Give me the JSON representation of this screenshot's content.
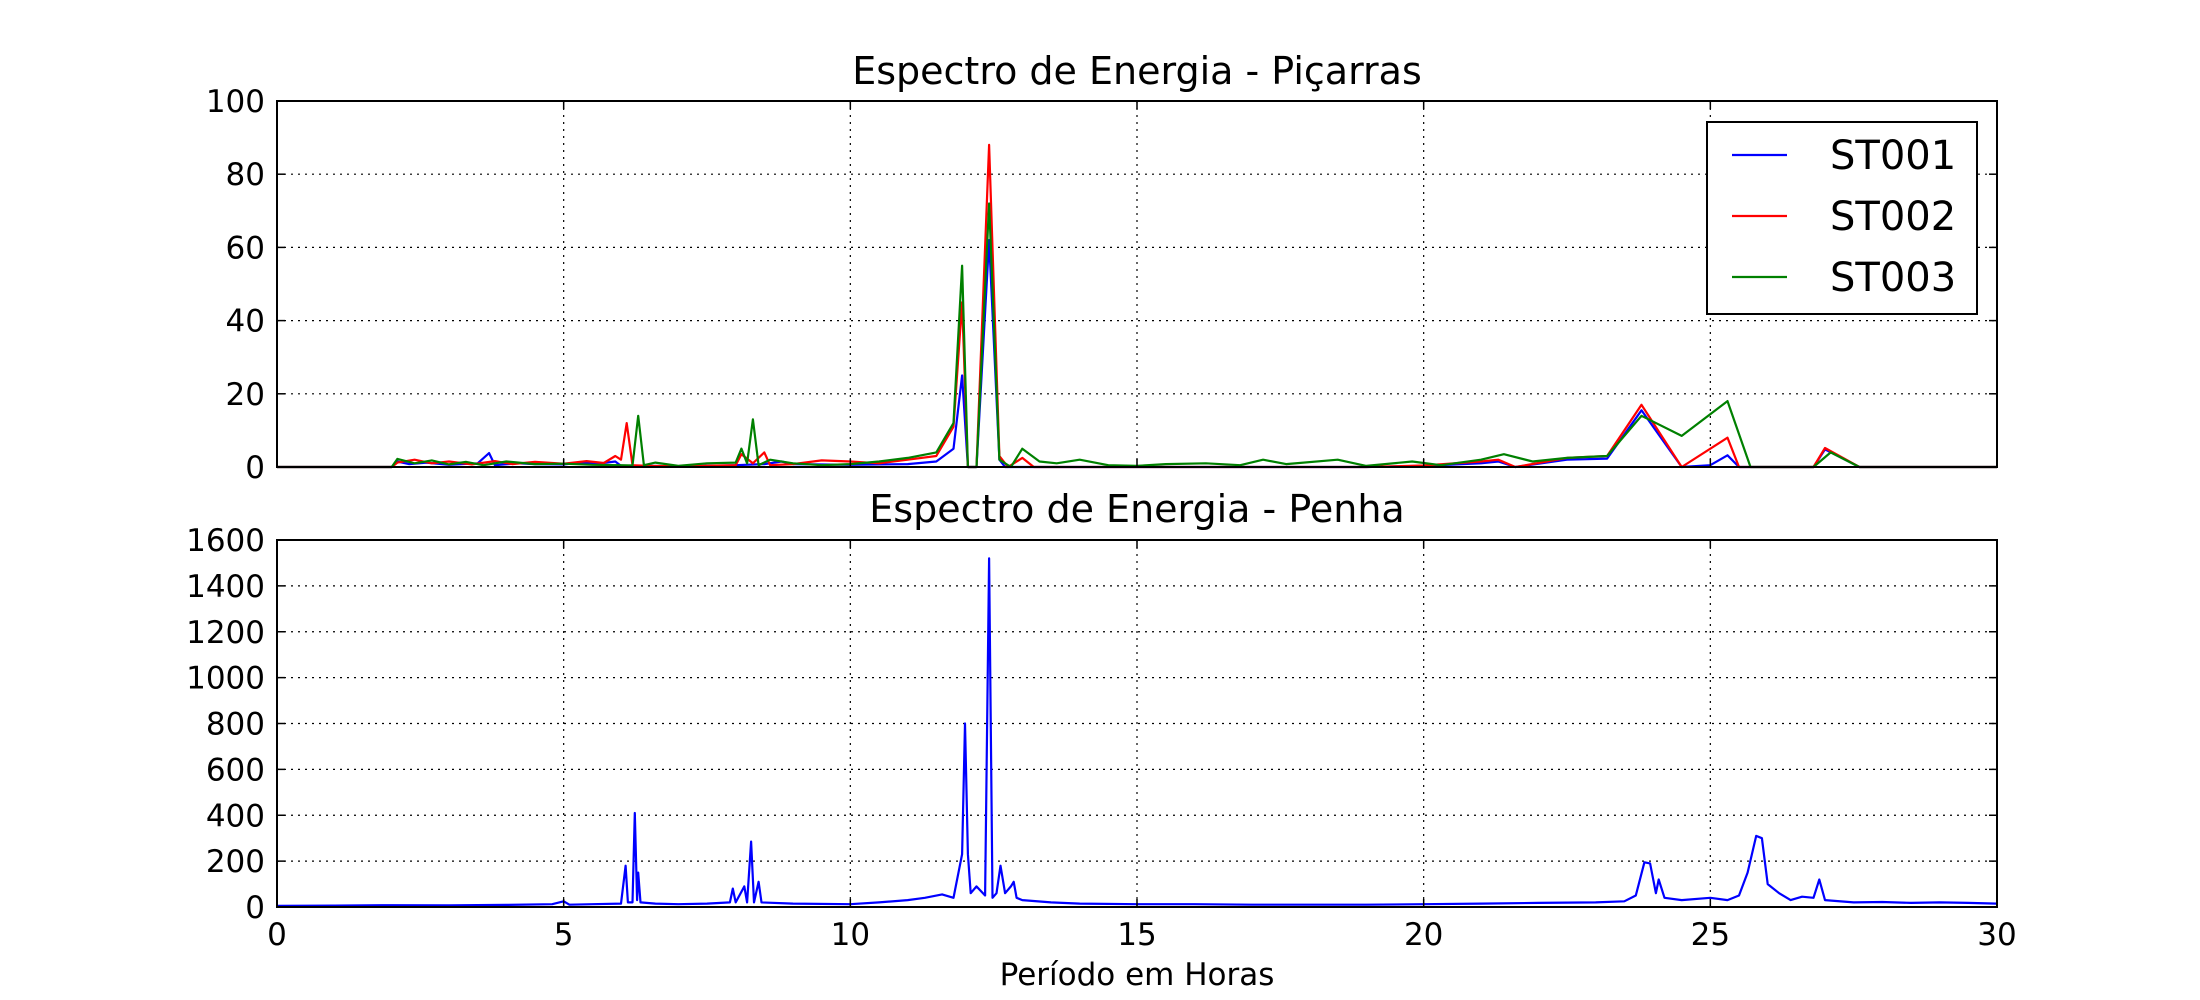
{
  "chart_data": [
    {
      "type": "line",
      "title": "Espectro de Energia - Piçarras",
      "xlabel": "",
      "ylabel": "",
      "xlim": [
        0,
        30
      ],
      "ylim": [
        0,
        100
      ],
      "xticks": [
        "0",
        "5",
        "10",
        "15",
        "20",
        "25",
        "30"
      ],
      "yticks": [
        "0",
        "20",
        "40",
        "60",
        "80",
        "100"
      ],
      "x_tick_labels_visible": false,
      "grid": true,
      "legend": "top-right",
      "series": [
        {
          "name": "ST001",
          "color": "#0000ff",
          "points": [
            [
              0,
              0
            ],
            [
              2,
              0
            ],
            [
              2.1,
              1.5
            ],
            [
              2.3,
              0.8
            ],
            [
              2.6,
              1.2
            ],
            [
              3,
              0.6
            ],
            [
              3.5,
              1
            ],
            [
              3.7,
              3.8
            ],
            [
              3.8,
              0.5
            ],
            [
              4.2,
              1
            ],
            [
              4.5,
              0.8
            ],
            [
              5,
              0.7
            ],
            [
              5.3,
              1.2
            ],
            [
              5.6,
              0.9
            ],
            [
              5.9,
              1.5
            ],
            [
              6,
              0.3
            ],
            [
              6.2,
              0.4
            ],
            [
              6.5,
              0.3
            ],
            [
              7,
              0.2
            ],
            [
              8,
              0.5
            ],
            [
              8.5,
              0.8
            ],
            [
              8.8,
              1.5
            ],
            [
              9,
              0.8
            ],
            [
              10,
              0.6
            ],
            [
              11,
              0.8
            ],
            [
              11.5,
              1.5
            ],
            [
              11.8,
              5
            ],
            [
              11.95,
              25
            ],
            [
              12.05,
              0
            ],
            [
              12.2,
              0
            ],
            [
              12.42,
              62
            ],
            [
              12.6,
              2
            ],
            [
              12.7,
              0
            ],
            [
              15,
              0
            ],
            [
              19,
              0
            ],
            [
              20,
              0.3
            ],
            [
              21,
              1
            ],
            [
              21.3,
              1.5
            ],
            [
              21.6,
              0
            ],
            [
              22.5,
              2
            ],
            [
              23.2,
              2.3
            ],
            [
              23.8,
              15.5
            ],
            [
              24.5,
              0
            ],
            [
              25,
              0.5
            ],
            [
              25.3,
              3.2
            ],
            [
              25.5,
              0
            ],
            [
              26.8,
              0
            ],
            [
              27,
              4.8
            ],
            [
              27.6,
              0
            ],
            [
              30,
              0
            ]
          ]
        },
        {
          "name": "ST002",
          "color": "#ff0000",
          "points": [
            [
              0,
              0
            ],
            [
              2,
              0
            ],
            [
              2.1,
              1.2
            ],
            [
              2.4,
              2
            ],
            [
              2.7,
              1
            ],
            [
              3,
              1.5
            ],
            [
              3.4,
              0.7
            ],
            [
              3.8,
              1.6
            ],
            [
              4.1,
              0.8
            ],
            [
              4.5,
              1.4
            ],
            [
              5,
              0.9
            ],
            [
              5.4,
              1.6
            ],
            [
              5.7,
              1.1
            ],
            [
              5.9,
              3
            ],
            [
              6,
              2
            ],
            [
              6.1,
              12
            ],
            [
              6.2,
              0.5
            ],
            [
              6.5,
              0.3
            ],
            [
              7,
              0.2
            ],
            [
              8,
              0.5
            ],
            [
              8.1,
              3.5
            ],
            [
              8.3,
              1
            ],
            [
              8.5,
              4
            ],
            [
              8.6,
              0.5
            ],
            [
              9,
              0.8
            ],
            [
              9.5,
              1.8
            ],
            [
              10,
              1.5
            ],
            [
              10.5,
              1
            ],
            [
              11,
              2
            ],
            [
              11.5,
              3
            ],
            [
              11.8,
              11
            ],
            [
              11.95,
              45
            ],
            [
              12.05,
              0
            ],
            [
              12.2,
              0
            ],
            [
              12.42,
              88
            ],
            [
              12.6,
              3
            ],
            [
              12.75,
              0
            ],
            [
              13,
              2.5
            ],
            [
              13.2,
              0
            ],
            [
              15,
              0
            ],
            [
              19,
              0
            ],
            [
              20,
              0.4
            ],
            [
              21,
              1.5
            ],
            [
              21.3,
              2
            ],
            [
              21.6,
              0
            ],
            [
              22.5,
              2.5
            ],
            [
              23.2,
              3
            ],
            [
              23.8,
              17
            ],
            [
              24.5,
              0
            ],
            [
              25.3,
              8
            ],
            [
              25.5,
              0
            ],
            [
              26.8,
              0
            ],
            [
              27,
              5.2
            ],
            [
              27.6,
              0
            ],
            [
              30,
              0
            ]
          ]
        },
        {
          "name": "ST003",
          "color": "#008000",
          "points": [
            [
              0,
              0
            ],
            [
              2,
              0
            ],
            [
              2.1,
              2.2
            ],
            [
              2.4,
              1
            ],
            [
              2.7,
              1.8
            ],
            [
              3,
              0.7
            ],
            [
              3.3,
              1.4
            ],
            [
              3.6,
              0.5
            ],
            [
              4,
              1.5
            ],
            [
              4.5,
              0.8
            ],
            [
              5,
              0.9
            ],
            [
              5.5,
              0.6
            ],
            [
              6,
              0.5
            ],
            [
              6.2,
              0.4
            ],
            [
              6.3,
              14
            ],
            [
              6.4,
              0.5
            ],
            [
              6.6,
              1.2
            ],
            [
              7,
              0.3
            ],
            [
              7.5,
              1
            ],
            [
              8,
              1.2
            ],
            [
              8.1,
              5
            ],
            [
              8.2,
              1
            ],
            [
              8.3,
              13
            ],
            [
              8.4,
              0.5
            ],
            [
              8.6,
              2
            ],
            [
              9,
              1
            ],
            [
              9.5,
              0.5
            ],
            [
              10,
              0.8
            ],
            [
              10.5,
              1.5
            ],
            [
              11,
              2.5
            ],
            [
              11.5,
              4
            ],
            [
              11.8,
              12
            ],
            [
              11.95,
              55
            ],
            [
              12.05,
              0
            ],
            [
              12.2,
              0
            ],
            [
              12.42,
              72
            ],
            [
              12.6,
              2
            ],
            [
              12.8,
              0
            ],
            [
              13,
              5
            ],
            [
              13.3,
              1.5
            ],
            [
              13.6,
              1
            ],
            [
              14,
              2
            ],
            [
              14.5,
              0.5
            ],
            [
              15,
              0.3
            ],
            [
              15.5,
              0.8
            ],
            [
              16.2,
              1
            ],
            [
              16.8,
              0.5
            ],
            [
              17.2,
              2
            ],
            [
              17.6,
              0.8
            ],
            [
              18.5,
              2
            ],
            [
              19,
              0.3
            ],
            [
              19.8,
              1.5
            ],
            [
              20.3,
              0.5
            ],
            [
              21,
              2
            ],
            [
              21.4,
              3.5
            ],
            [
              21.9,
              1.5
            ],
            [
              22.5,
              2.5
            ],
            [
              23.2,
              3
            ],
            [
              23.8,
              14
            ],
            [
              24.5,
              8.5
            ],
            [
              25.3,
              18
            ],
            [
              25.7,
              0
            ],
            [
              26.8,
              0
            ],
            [
              27.1,
              4
            ],
            [
              27.6,
              0
            ],
            [
              30,
              0
            ]
          ]
        }
      ]
    },
    {
      "type": "line",
      "title": "Espectro de Energia - Penha",
      "xlabel": "Período em Horas",
      "ylabel": "",
      "xlim": [
        0,
        30
      ],
      "ylim": [
        0,
        1600
      ],
      "xticks": [
        "0",
        "5",
        "10",
        "15",
        "20",
        "25",
        "30"
      ],
      "yticks": [
        "0",
        "200",
        "400",
        "600",
        "800",
        "1000",
        "1200",
        "1400",
        "1600"
      ],
      "grid": true,
      "series": [
        {
          "color": "#0000ff",
          "points": [
            [
              0,
              5
            ],
            [
              1,
              6
            ],
            [
              2,
              8
            ],
            [
              3,
              7
            ],
            [
              4,
              9
            ],
            [
              4.8,
              12
            ],
            [
              5,
              25
            ],
            [
              5.1,
              10
            ],
            [
              5.5,
              12
            ],
            [
              6,
              15
            ],
            [
              6.08,
              180
            ],
            [
              6.12,
              20
            ],
            [
              6.2,
              20
            ],
            [
              6.24,
              410
            ],
            [
              6.28,
              30
            ],
            [
              6.3,
              150
            ],
            [
              6.34,
              20
            ],
            [
              6.6,
              15
            ],
            [
              7,
              12
            ],
            [
              7.5,
              15
            ],
            [
              7.9,
              20
            ],
            [
              7.95,
              80
            ],
            [
              8,
              20
            ],
            [
              8.15,
              90
            ],
            [
              8.2,
              20
            ],
            [
              8.27,
              285
            ],
            [
              8.32,
              20
            ],
            [
              8.4,
              110
            ],
            [
              8.45,
              20
            ],
            [
              9,
              15
            ],
            [
              10,
              12
            ],
            [
              10.5,
              20
            ],
            [
              11,
              30
            ],
            [
              11.3,
              40
            ],
            [
              11.6,
              55
            ],
            [
              11.8,
              40
            ],
            [
              11.95,
              230
            ],
            [
              12,
              800
            ],
            [
              12.05,
              230
            ],
            [
              12.1,
              60
            ],
            [
              12.2,
              90
            ],
            [
              12.35,
              50
            ],
            [
              12.42,
              1520
            ],
            [
              12.48,
              40
            ],
            [
              12.55,
              60
            ],
            [
              12.62,
              180
            ],
            [
              12.7,
              60
            ],
            [
              12.8,
              90
            ],
            [
              12.85,
              110
            ],
            [
              12.9,
              40
            ],
            [
              13,
              30
            ],
            [
              13.5,
              20
            ],
            [
              14,
              15
            ],
            [
              15,
              12
            ],
            [
              16,
              12
            ],
            [
              17,
              10
            ],
            [
              18,
              10
            ],
            [
              19,
              10
            ],
            [
              20,
              12
            ],
            [
              21,
              15
            ],
            [
              22,
              18
            ],
            [
              23,
              20
            ],
            [
              23.5,
              25
            ],
            [
              23.7,
              50
            ],
            [
              23.85,
              195
            ],
            [
              23.95,
              190
            ],
            [
              24.05,
              60
            ],
            [
              24.1,
              120
            ],
            [
              24.2,
              40
            ],
            [
              24.5,
              30
            ],
            [
              25,
              40
            ],
            [
              25.3,
              30
            ],
            [
              25.5,
              50
            ],
            [
              25.65,
              150
            ],
            [
              25.8,
              310
            ],
            [
              25.9,
              300
            ],
            [
              26,
              100
            ],
            [
              26.2,
              60
            ],
            [
              26.4,
              30
            ],
            [
              26.6,
              45
            ],
            [
              26.8,
              40
            ],
            [
              26.9,
              120
            ],
            [
              27,
              30
            ],
            [
              27.5,
              20
            ],
            [
              28,
              22
            ],
            [
              28.5,
              18
            ],
            [
              29,
              20
            ],
            [
              29.5,
              18
            ],
            [
              30,
              15
            ]
          ]
        }
      ]
    }
  ]
}
